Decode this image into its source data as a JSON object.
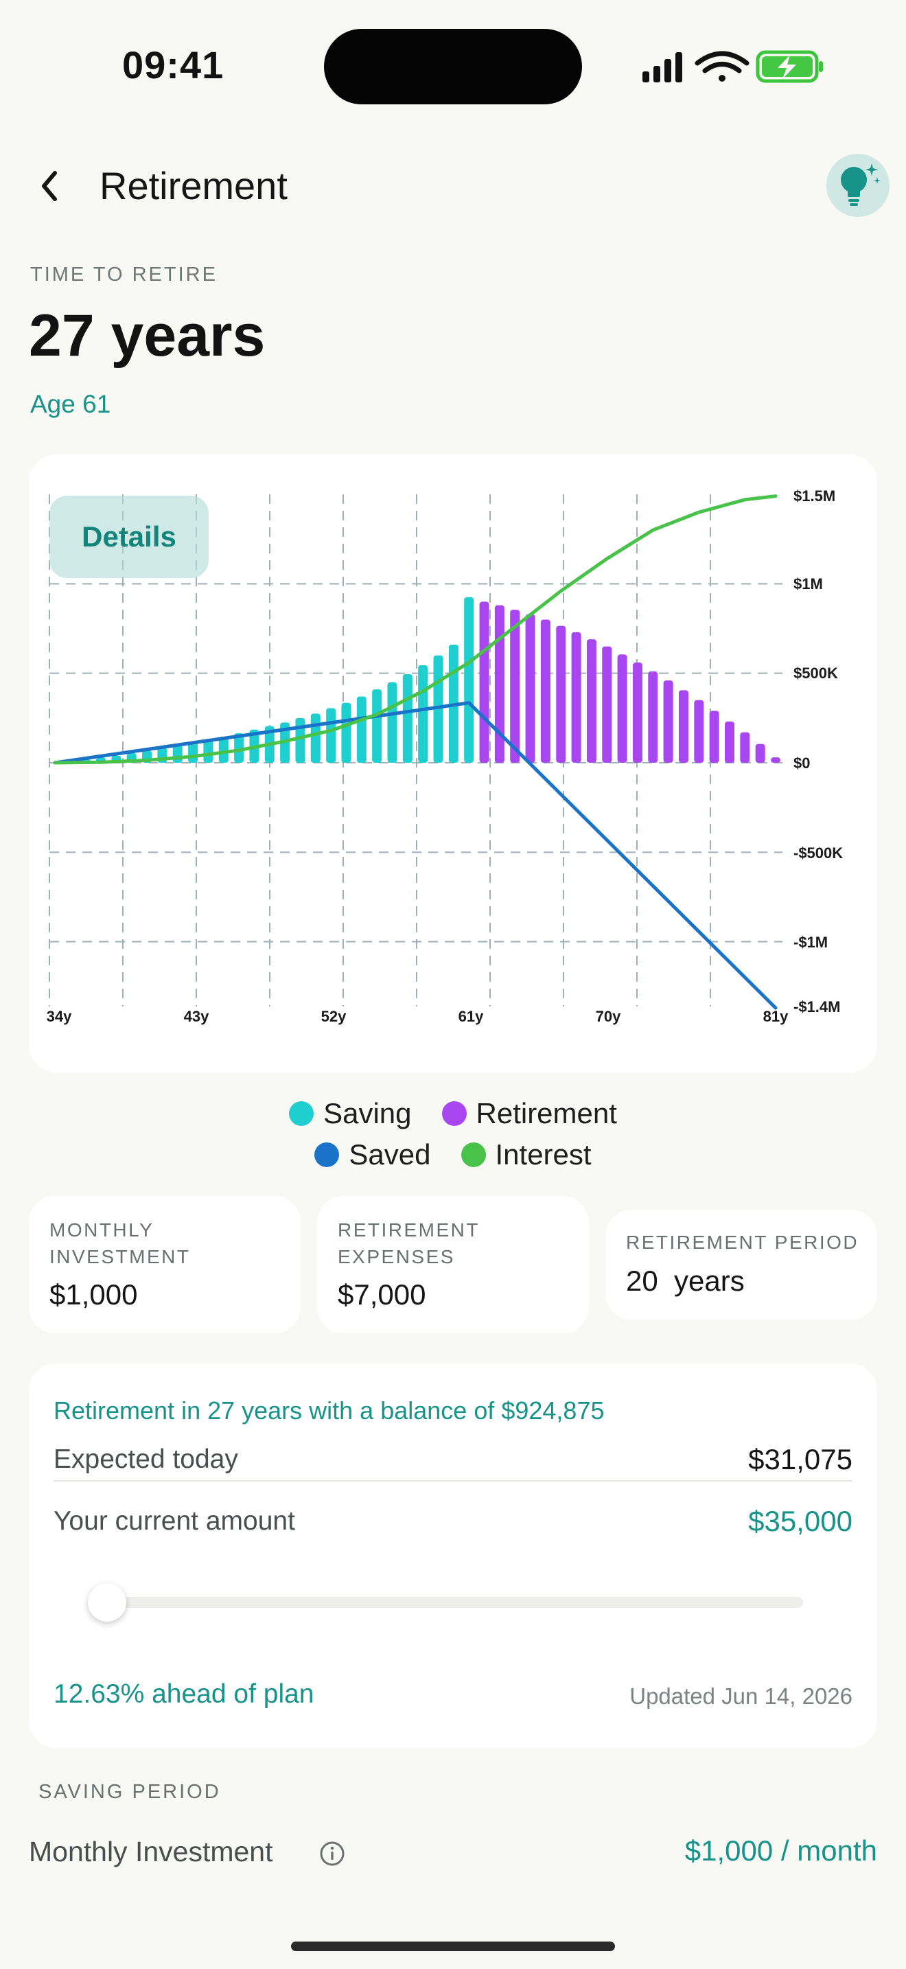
{
  "status_bar": {
    "time": "09:41"
  },
  "header": {
    "title": "Retirement"
  },
  "hero": {
    "eyebrow": "TIME TO RETIRE",
    "value": "27 years",
    "subtitle": "Age 61"
  },
  "chart_card": {
    "details_label": "Details"
  },
  "chart_data": {
    "type": "bar",
    "x_unit": "age (years)",
    "x_ticks": [
      "34y",
      "43y",
      "52y",
      "61y",
      "70y",
      "81y"
    ],
    "y_ticks": [
      "$1.5M",
      "$1M",
      "$500K",
      "$0",
      "-$500K",
      "-$1M",
      "-$1.4M"
    ],
    "ylim": [
      -1400000,
      1500000
    ],
    "series": [
      {
        "name": "Saving",
        "kind": "bar",
        "color": "#1fcfcf",
        "x": [
          35,
          36,
          37,
          38,
          39,
          40,
          41,
          42,
          43,
          44,
          45,
          46,
          47,
          48,
          49,
          50,
          51,
          52,
          53,
          54,
          55,
          56,
          57,
          58,
          59,
          60,
          61
        ],
        "values": [
          10000,
          20000,
          30000,
          40000,
          55000,
          70000,
          85000,
          100000,
          115000,
          130000,
          145000,
          165000,
          185000,
          205000,
          225000,
          250000,
          275000,
          305000,
          335000,
          370000,
          410000,
          450000,
          495000,
          545000,
          600000,
          660000,
          925000
        ]
      },
      {
        "name": "Retirement",
        "kind": "bar",
        "color": "#a846f2",
        "x": [
          62,
          63,
          64,
          65,
          66,
          67,
          68,
          69,
          70,
          71,
          72,
          73,
          74,
          75,
          76,
          77,
          78,
          79,
          80,
          81
        ],
        "values": [
          900000,
          880000,
          855000,
          830000,
          800000,
          765000,
          730000,
          690000,
          650000,
          605000,
          560000,
          510000,
          460000,
          405000,
          350000,
          290000,
          230000,
          170000,
          105000,
          30000
        ]
      },
      {
        "name": "Saved",
        "kind": "line",
        "color": "#1a73c8",
        "x": [
          34,
          61,
          81
        ],
        "values": [
          0,
          335000,
          -1370000
        ]
      },
      {
        "name": "Interest",
        "kind": "line",
        "color": "#48c248",
        "x": [
          34,
          37,
          40,
          43,
          46,
          49,
          52,
          55,
          58,
          61,
          64,
          67,
          70,
          73,
          76,
          79,
          81
        ],
        "values": [
          0,
          3000,
          14000,
          35000,
          70000,
          120000,
          180000,
          270000,
          400000,
          560000,
          760000,
          960000,
          1140000,
          1300000,
          1400000,
          1470000,
          1490000
        ]
      }
    ],
    "legend": "bottom-center",
    "grid": true
  },
  "stats": [
    {
      "label_lines": [
        "MONTHLY",
        "INVESTMENT"
      ],
      "value": "$1,000"
    },
    {
      "label_lines": [
        "RETIREMENT",
        "EXPENSES"
      ],
      "value": "$7,000"
    },
    {
      "label_lines": [
        "RETIREMENT PERIOD"
      ],
      "value": "20  years"
    }
  ],
  "summary": {
    "title": "Retirement in 27 years with a balance of $924,875",
    "expected_label": "Expected today",
    "expected_value": "$31,075",
    "current_label": "Your current amount",
    "current_value": "$35,000",
    "slider_value": 0.0,
    "ahead_text": "12.63% ahead of plan",
    "updated_text": "Updated Jun 14, 2026"
  },
  "saving_period": {
    "section_label": "SAVING PERIOD",
    "monthly_label": "Monthly Investment",
    "monthly_value": "$1,000 / month"
  },
  "colors": {
    "accent": "#17938a",
    "background": "#f8f8f4",
    "card": "#ffffff"
  },
  "icons": [
    "back-chevron-icon",
    "lightbulb-sparkle-icon",
    "info-icon",
    "signal-icon",
    "wifi-icon",
    "battery-charging-icon"
  ]
}
